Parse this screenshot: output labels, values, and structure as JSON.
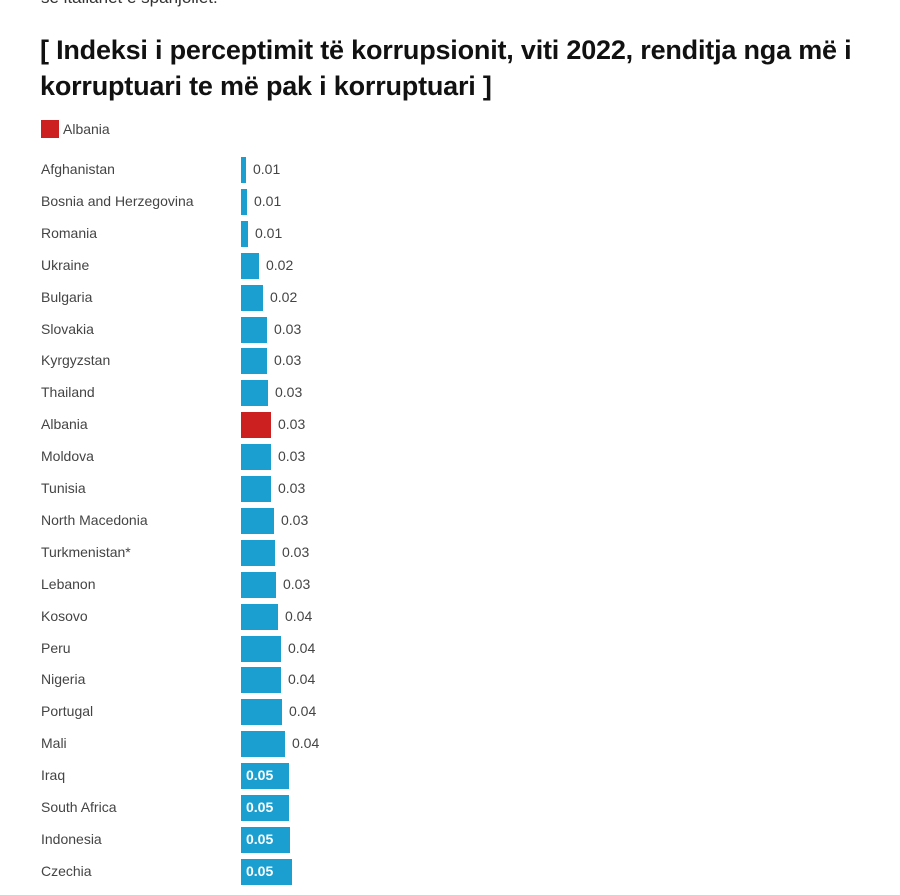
{
  "intro_text": "së italianët e spanjollët.",
  "chart_data": {
    "type": "bar",
    "orientation": "horizontal",
    "title": "[ Indeksi i perceptimit të korrupsionit, viti 2022, renditja nga më i korruptuari te më pak i korruptuari ]",
    "legend": [
      {
        "label": "Albania",
        "color": "#cc1f1f"
      }
    ],
    "legend_placement": "top-left",
    "default_color": "#1a9fd0",
    "highlight_color": "#cc1f1f",
    "categories": [
      "Afghanistan",
      "Bosnia and Herzegovina",
      "Romania",
      "Ukraine",
      "Bulgaria",
      "Slovakia",
      "Kyrgyzstan",
      "Thailand",
      "Albania",
      "Moldova",
      "Tunisia",
      "North Macedonia",
      "Turkmenistan*",
      "Lebanon",
      "Kosovo",
      "Peru",
      "Nigeria",
      "Portugal",
      "Mali",
      "Iraq",
      "South Africa",
      "Indonesia",
      "Czechia"
    ],
    "values": [
      0.005,
      0.006,
      0.007,
      0.018,
      0.022,
      0.026,
      0.026,
      0.027,
      0.03,
      0.03,
      0.03,
      0.033,
      0.034,
      0.035,
      0.037,
      0.04,
      0.04,
      0.041,
      0.044,
      0.048,
      0.048,
      0.049,
      0.051
    ],
    "labels": [
      "0.01",
      "0.01",
      "0.01",
      "0.02",
      "0.02",
      "0.03",
      "0.03",
      "0.03",
      "0.03",
      "0.03",
      "0.03",
      "0.03",
      "0.03",
      "0.03",
      "0.04",
      "0.04",
      "0.04",
      "0.04",
      "0.04",
      "0.05",
      "0.05",
      "0.05",
      "0.05"
    ],
    "highlight": "Albania"
  }
}
